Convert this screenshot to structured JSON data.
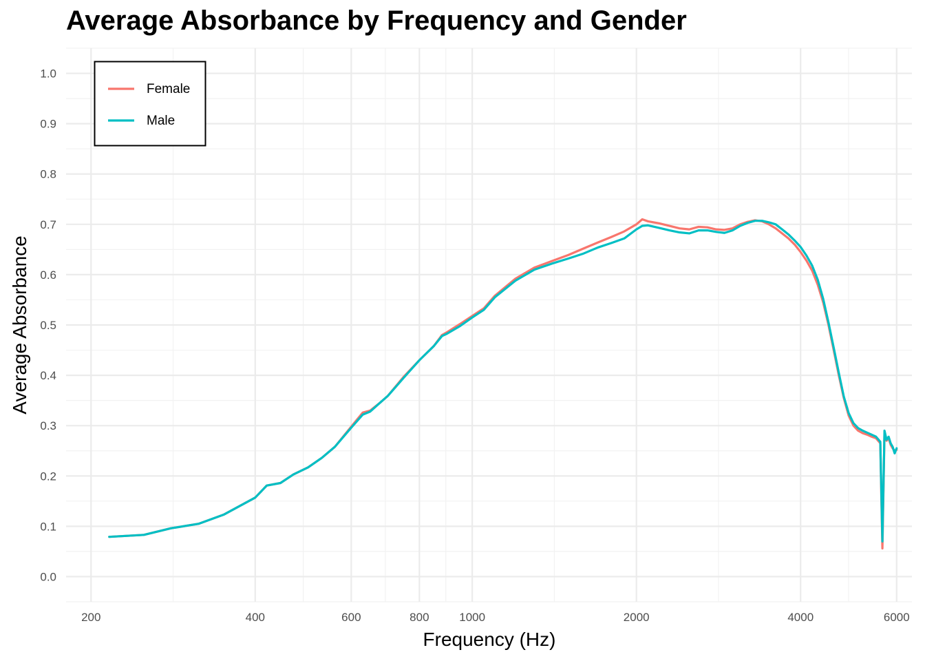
{
  "chart_data": {
    "type": "line",
    "title": "Average Absorbance by Frequency and Gender",
    "xlabel": "Frequency (Hz)",
    "ylabel": "Average Absorbance",
    "x_scale": "log",
    "xlim": [
      180,
      6400
    ],
    "ylim": [
      -0.05,
      1.05
    ],
    "x_ticks": [
      200,
      400,
      600,
      800,
      1000,
      2000,
      4000,
      6000
    ],
    "y_ticks": [
      0.0,
      0.1,
      0.2,
      0.3,
      0.4,
      0.5,
      0.6,
      0.7,
      0.8,
      0.9,
      1.0
    ],
    "y_tick_labels": [
      "0.0",
      "0.1",
      "0.2",
      "0.3",
      "0.4",
      "0.5",
      "0.6",
      "0.7",
      "0.8",
      "0.9",
      "1.0"
    ],
    "grid": true,
    "legend_position": "top-left",
    "series": [
      {
        "name": "Female",
        "color": "#F8766D",
        "x": [
          216,
          250,
          280,
          315,
          350,
          400,
          420,
          445,
          470,
          500,
          530,
          560,
          600,
          630,
          650,
          680,
          700,
          720,
          750,
          800,
          850,
          880,
          900,
          950,
          1000,
          1050,
          1100,
          1200,
          1300,
          1400,
          1500,
          1600,
          1700,
          1800,
          1900,
          2000,
          2050,
          2100,
          2200,
          2300,
          2400,
          2500,
          2600,
          2700,
          2800,
          2900,
          3000,
          3100,
          3200,
          3300,
          3400,
          3500,
          3600,
          3700,
          3800,
          3900,
          4000,
          4100,
          4200,
          4300,
          4400,
          4500,
          4600,
          4700,
          4800,
          4900,
          5000,
          5100,
          5200,
          5300,
          5400,
          5500,
          5600,
          5650,
          5700,
          5750,
          5800,
          5850,
          5900,
          5950,
          6000
        ],
        "y": [
          0.079,
          0.083,
          0.096,
          0.105,
          0.123,
          0.157,
          0.181,
          0.186,
          0.203,
          0.217,
          0.236,
          0.258,
          0.298,
          0.326,
          0.33,
          0.347,
          0.359,
          0.375,
          0.398,
          0.43,
          0.458,
          0.48,
          0.486,
          0.502,
          0.518,
          0.533,
          0.558,
          0.592,
          0.614,
          0.627,
          0.639,
          0.652,
          0.664,
          0.675,
          0.686,
          0.7,
          0.71,
          0.706,
          0.702,
          0.697,
          0.692,
          0.69,
          0.695,
          0.694,
          0.69,
          0.689,
          0.692,
          0.7,
          0.705,
          0.708,
          0.706,
          0.7,
          0.692,
          0.682,
          0.672,
          0.66,
          0.645,
          0.628,
          0.608,
          0.58,
          0.545,
          0.5,
          0.45,
          0.4,
          0.355,
          0.32,
          0.3,
          0.29,
          0.285,
          0.282,
          0.278,
          0.275,
          0.265,
          0.056,
          0.285,
          0.27,
          0.275,
          0.262,
          0.255,
          0.25,
          0.252
        ]
      },
      {
        "name": "Male",
        "color": "#00BFC4",
        "x": [
          216,
          250,
          280,
          315,
          350,
          400,
          420,
          445,
          470,
          500,
          530,
          560,
          600,
          630,
          650,
          680,
          700,
          720,
          750,
          800,
          850,
          880,
          900,
          950,
          1000,
          1050,
          1100,
          1200,
          1300,
          1400,
          1500,
          1600,
          1700,
          1800,
          1900,
          2000,
          2050,
          2100,
          2200,
          2300,
          2400,
          2500,
          2600,
          2700,
          2800,
          2900,
          3000,
          3100,
          3200,
          3300,
          3400,
          3500,
          3600,
          3700,
          3800,
          3900,
          4000,
          4100,
          4200,
          4300,
          4400,
          4500,
          4600,
          4700,
          4800,
          4900,
          5000,
          5100,
          5200,
          5300,
          5400,
          5500,
          5600,
          5650,
          5700,
          5750,
          5800,
          5850,
          5900,
          5950,
          6000
        ],
        "y": [
          0.079,
          0.083,
          0.096,
          0.105,
          0.123,
          0.157,
          0.181,
          0.186,
          0.203,
          0.217,
          0.236,
          0.258,
          0.296,
          0.322,
          0.328,
          0.347,
          0.359,
          0.374,
          0.396,
          0.43,
          0.458,
          0.478,
          0.483,
          0.498,
          0.515,
          0.53,
          0.555,
          0.588,
          0.61,
          0.622,
          0.632,
          0.642,
          0.654,
          0.663,
          0.672,
          0.69,
          0.697,
          0.698,
          0.693,
          0.688,
          0.684,
          0.682,
          0.688,
          0.688,
          0.685,
          0.683,
          0.688,
          0.697,
          0.703,
          0.707,
          0.707,
          0.704,
          0.7,
          0.69,
          0.68,
          0.668,
          0.655,
          0.638,
          0.618,
          0.59,
          0.552,
          0.505,
          0.455,
          0.405,
          0.358,
          0.325,
          0.305,
          0.295,
          0.29,
          0.286,
          0.282,
          0.278,
          0.268,
          0.07,
          0.29,
          0.272,
          0.278,
          0.265,
          0.258,
          0.245,
          0.255
        ]
      }
    ]
  }
}
